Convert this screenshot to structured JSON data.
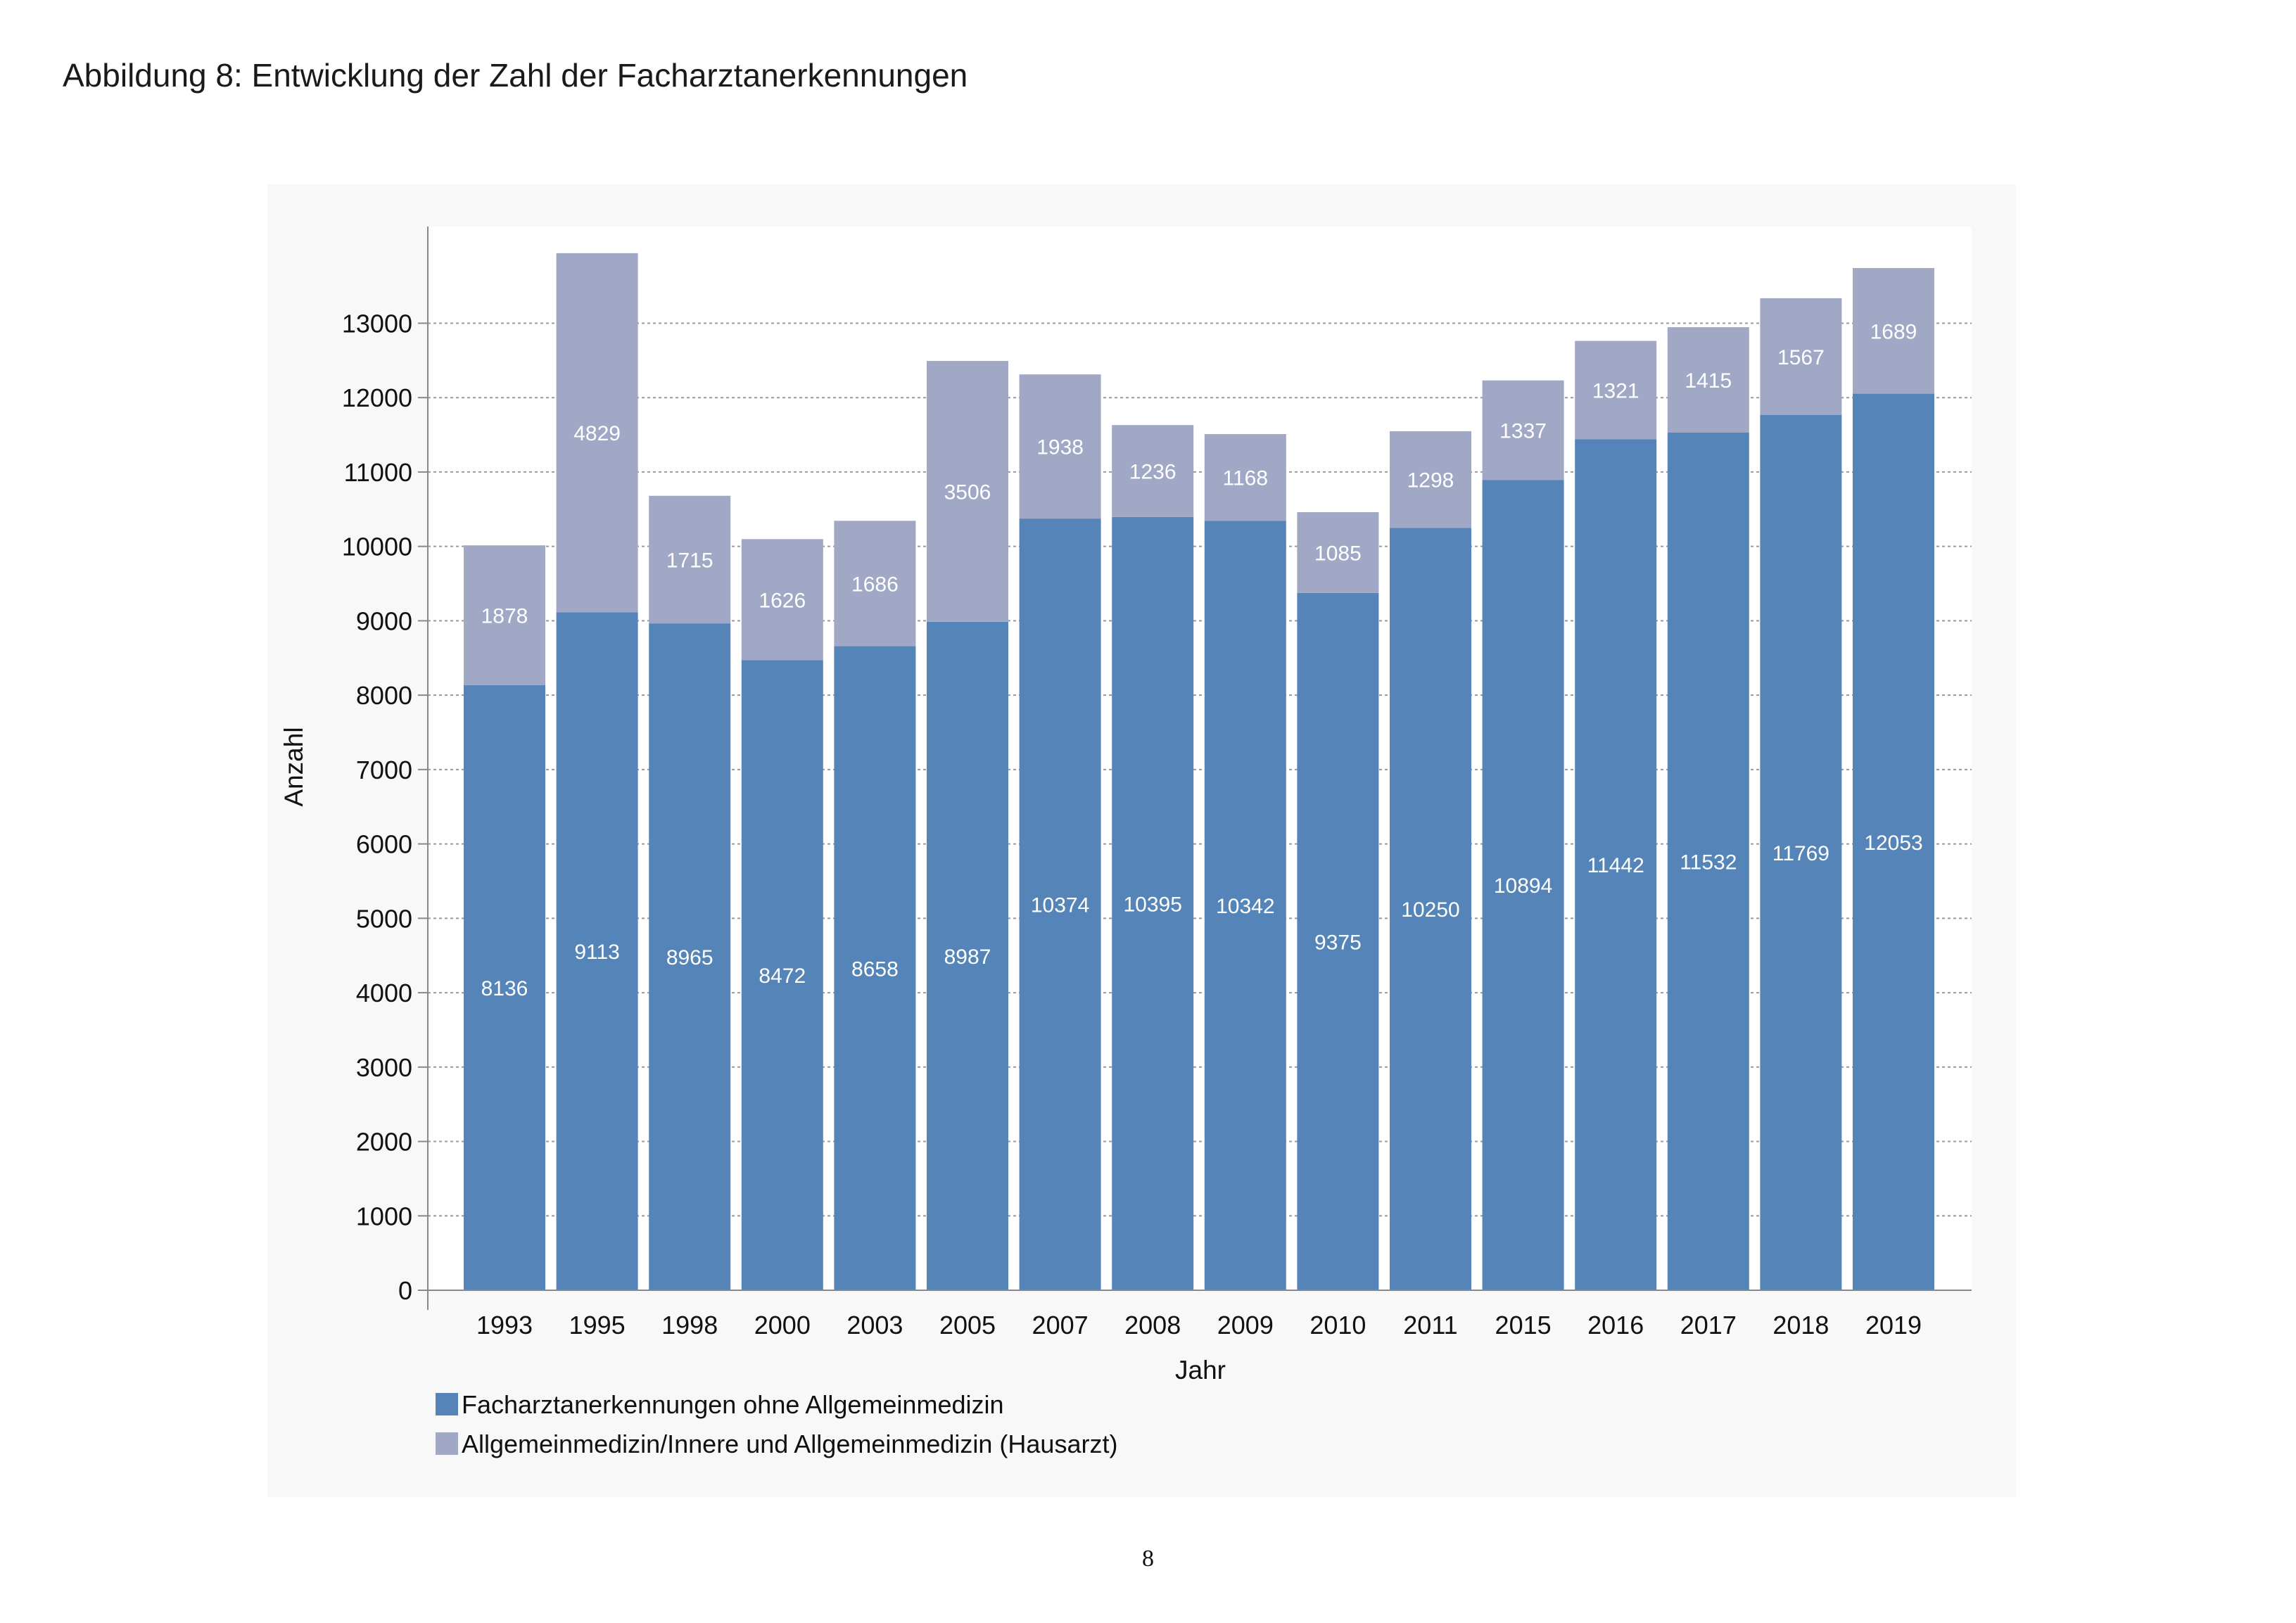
{
  "page": {
    "title": "Abbildung 8: Entwicklung der Zahl der Facharztanerkennungen",
    "page_number": "8"
  },
  "colors": {
    "primary": "#5585b8",
    "secondary": "#a1a8c6",
    "panel": "#f8f8f8",
    "plot": "#ffffff",
    "label": "#ffffff"
  },
  "chart_data": {
    "type": "bar",
    "stacked": true,
    "categories": [
      "1993",
      "1995",
      "1998",
      "2000",
      "2003",
      "2005",
      "2007",
      "2008",
      "2009",
      "2010",
      "2011",
      "2015",
      "2016",
      "2017",
      "2018",
      "2019"
    ],
    "series": [
      {
        "name": "Facharztanerkennungen ohne Allgemeinmedizin",
        "color": "#5585b8",
        "values": [
          8136,
          9113,
          8965,
          8472,
          8658,
          8987,
          10374,
          10395,
          10342,
          9375,
          10250,
          10894,
          11442,
          11532,
          11769,
          12053
        ]
      },
      {
        "name": "Allgemeinmedizin/Innere und Allgemeinmedizin (Hausarzt)",
        "color": "#a1a8c6",
        "values": [
          1878,
          4829,
          1715,
          1626,
          1686,
          3506,
          1938,
          1236,
          1168,
          1085,
          1298,
          1337,
          1321,
          1415,
          1567,
          1689
        ]
      }
    ],
    "xlabel": "Jahr",
    "ylabel": "Anzahl",
    "ylim": [
      0,
      14300
    ],
    "yticks": [
      0,
      1000,
      2000,
      3000,
      4000,
      5000,
      6000,
      7000,
      8000,
      9000,
      10000,
      11000,
      12000,
      13000
    ],
    "grid": true,
    "legend_position": "bottom-left"
  }
}
